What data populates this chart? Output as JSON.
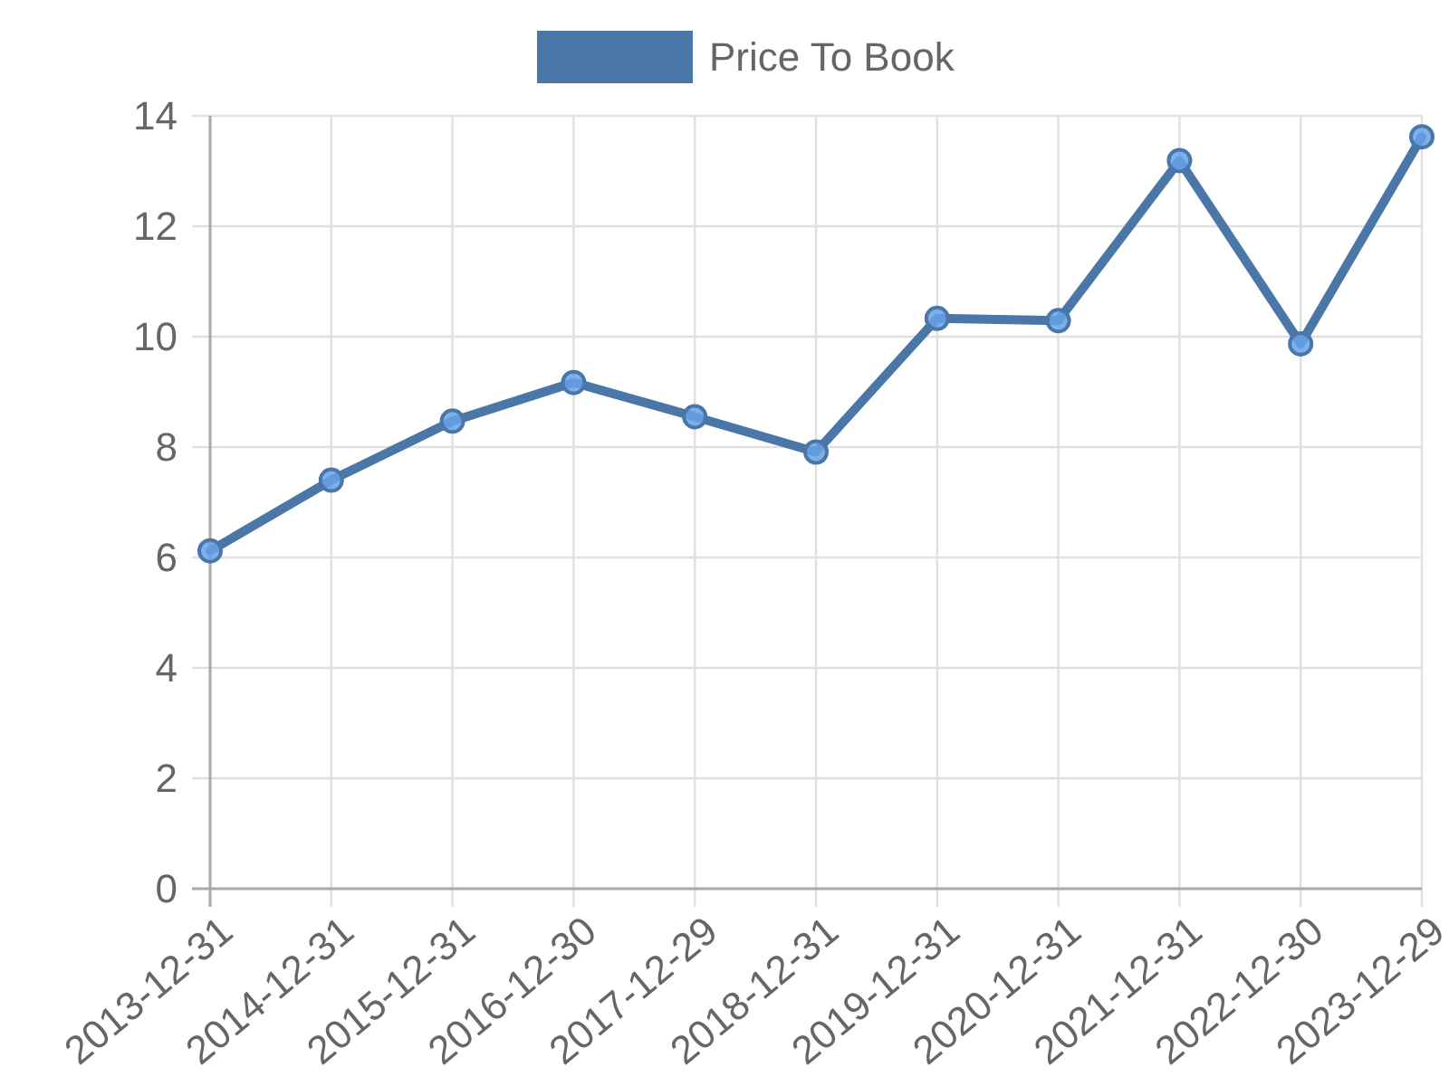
{
  "chart_data": {
    "type": "line",
    "categories": [
      "2013-12-31",
      "2014-12-31",
      "2015-12-31",
      "2016-12-30",
      "2017-12-29",
      "2018-12-31",
      "2019-12-31",
      "2020-12-31",
      "2021-12-31",
      "2022-12-30",
      "2023-12-29"
    ],
    "series": [
      {
        "name": "Price To Book",
        "color": "#4a76a8",
        "values": [
          6.12,
          7.4,
          8.47,
          9.17,
          8.55,
          7.91,
          10.33,
          10.29,
          13.19,
          9.87,
          13.62
        ]
      }
    ],
    "ylim": [
      0,
      14
    ],
    "yticks": [
      0,
      2,
      4,
      6,
      8,
      10,
      12,
      14
    ],
    "grid": true,
    "legend": "top",
    "marker": "circle",
    "line_style": "solid"
  }
}
